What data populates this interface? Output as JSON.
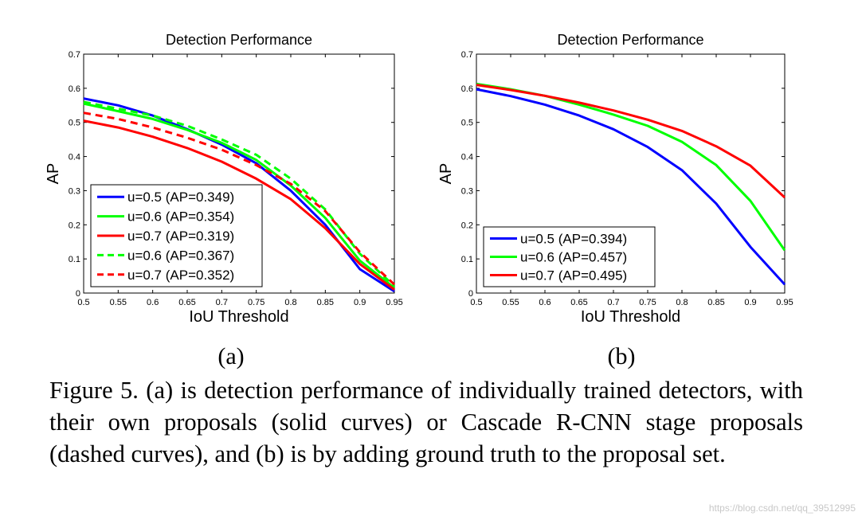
{
  "chart_data": [
    {
      "type": "line",
      "title": "Detection Performance",
      "xlabel": "IoU Threshold",
      "ylabel": "AP",
      "xlim": [
        0.5,
        0.95
      ],
      "ylim": [
        0,
        0.7
      ],
      "x": [
        0.5,
        0.55,
        0.6,
        0.65,
        0.7,
        0.75,
        0.8,
        0.85,
        0.9,
        0.95
      ],
      "xtick_labels": [
        "0.5",
        "0.55",
        "0.6",
        "0.65",
        "0.7",
        "0.75",
        "0.8",
        "0.85",
        "0.9",
        "0.95"
      ],
      "ytick_labels": [
        "0",
        "0.1",
        "0.2",
        "0.3",
        "0.4",
        "0.5",
        "0.6",
        "0.7"
      ],
      "legend_position": "bottom-left",
      "series": [
        {
          "name": "u=0.5 (AP=0.349)",
          "color": "#0000ff",
          "dash": "solid",
          "values": [
            0.57,
            0.55,
            0.52,
            0.48,
            0.435,
            0.38,
            0.3,
            0.2,
            0.07,
            0.005
          ]
        },
        {
          "name": "u=0.6 (AP=0.354)",
          "color": "#00ff00",
          "dash": "solid",
          "values": [
            0.555,
            0.533,
            0.51,
            0.478,
            0.44,
            0.39,
            0.315,
            0.22,
            0.095,
            0.015
          ]
        },
        {
          "name": "u=0.7 (AP=0.319)",
          "color": "#ff0000",
          "dash": "solid",
          "values": [
            0.505,
            0.485,
            0.458,
            0.425,
            0.385,
            0.335,
            0.275,
            0.19,
            0.085,
            0.01
          ]
        },
        {
          "name": "u=0.6 (AP=0.367)",
          "color": "#00ff00",
          "dash": "dashed",
          "values": [
            0.56,
            0.54,
            0.52,
            0.49,
            0.45,
            0.405,
            0.335,
            0.245,
            0.115,
            0.02
          ]
        },
        {
          "name": "u=0.7 (AP=0.352)",
          "color": "#ff0000",
          "dash": "dashed",
          "values": [
            0.528,
            0.51,
            0.485,
            0.455,
            0.42,
            0.375,
            0.32,
            0.24,
            0.12,
            0.025
          ]
        }
      ]
    },
    {
      "type": "line",
      "title": "Detection Performance",
      "xlabel": "IoU Threshold",
      "ylabel": "AP",
      "xlim": [
        0.5,
        0.95
      ],
      "ylim": [
        0,
        0.7
      ],
      "x": [
        0.5,
        0.55,
        0.6,
        0.65,
        0.7,
        0.75,
        0.8,
        0.85,
        0.9,
        0.95
      ],
      "xtick_labels": [
        "0.5",
        "0.55",
        "0.6",
        "0.65",
        "0.7",
        "0.75",
        "0.8",
        "0.85",
        "0.9",
        "0.95"
      ],
      "ytick_labels": [
        "0",
        "0.1",
        "0.2",
        "0.3",
        "0.4",
        "0.5",
        "0.6",
        "0.7"
      ],
      "legend_position": "bottom-left",
      "series": [
        {
          "name": "u=0.5 (AP=0.394)",
          "color": "#0000ff",
          "dash": "solid",
          "values": [
            0.597,
            0.577,
            0.552,
            0.52,
            0.48,
            0.428,
            0.36,
            0.262,
            0.135,
            0.025
          ]
        },
        {
          "name": "u=0.6 (AP=0.457)",
          "color": "#00ff00",
          "dash": "solid",
          "values": [
            0.613,
            0.597,
            0.578,
            0.552,
            0.523,
            0.49,
            0.443,
            0.375,
            0.27,
            0.125
          ]
        },
        {
          "name": "u=0.7 (AP=0.495)",
          "color": "#ff0000",
          "dash": "solid",
          "values": [
            0.61,
            0.595,
            0.578,
            0.558,
            0.535,
            0.508,
            0.475,
            0.43,
            0.373,
            0.28
          ]
        }
      ]
    }
  ],
  "subfigure_labels": [
    "(a)",
    "(b)"
  ],
  "caption": "Figure 5. (a) is detection performance of individually trained detectors, with their own proposals (solid curves) or Cascade R-CNN stage proposals (dashed curves), and (b) is by adding ground truth to the proposal set.",
  "watermark": "https://blog.csdn.net/qq_39512995"
}
